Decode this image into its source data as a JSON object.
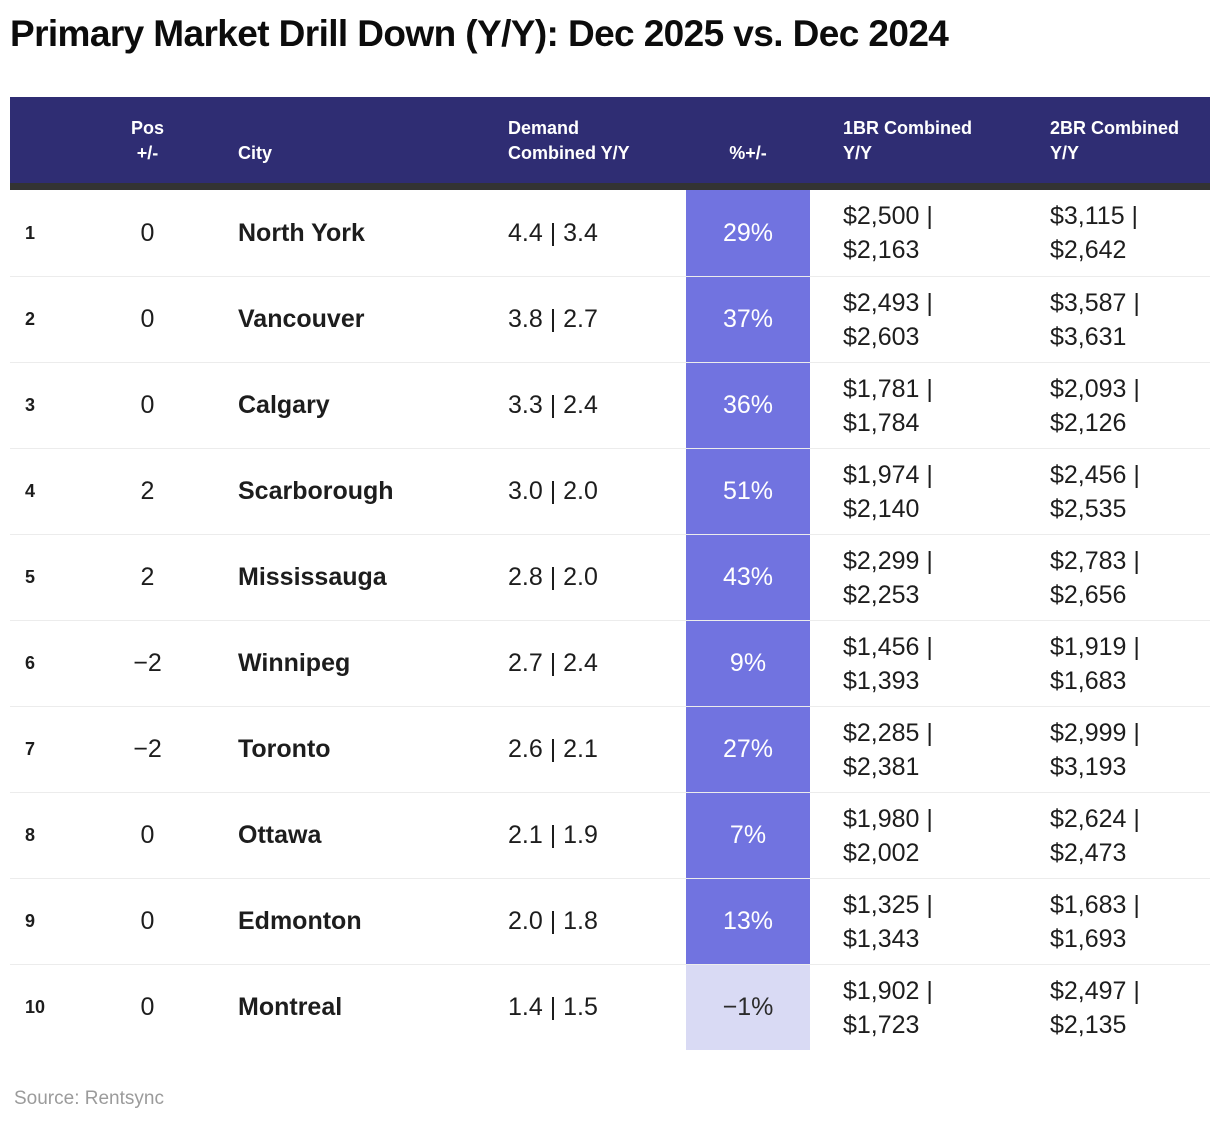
{
  "colors": {
    "header_bg": "#2f2d73",
    "header_divider": "#333333",
    "pct_highlight_bg": "#7173e0",
    "pct_highlight_negative_bg": "#d9daf4",
    "pct_text": "#ffffff",
    "pct_text_negative": "#2b2b2b"
  },
  "chart_data": {
    "type": "table",
    "title": "Primary Market Drill Down (Y/Y): Dec 2025 vs. Dec 2024",
    "source": "Source: Rentsync",
    "headers": {
      "rank": "",
      "pos": "Pos\n+/-",
      "city": "City",
      "demand": "Demand\nCombined Y/Y",
      "pct": "%+/-",
      "br1": "1BR Combined\nY/Y",
      "br2": "2BR Combined\nY/Y"
    },
    "rows": [
      {
        "rank": "1",
        "pos": "0",
        "city": "North York",
        "demand": "4.4 | 3.4",
        "pct": "29%",
        "br1": "$2,500 |\n$2,163",
        "br2": "$3,115 |\n$2,642"
      },
      {
        "rank": "2",
        "pos": "0",
        "city": "Vancouver",
        "demand": "3.8 | 2.7",
        "pct": "37%",
        "br1": "$2,493 |\n$2,603",
        "br2": "$3,587 |\n$3,631"
      },
      {
        "rank": "3",
        "pos": "0",
        "city": "Calgary",
        "demand": "3.3 | 2.4",
        "pct": "36%",
        "br1": "$1,781 |\n$1,784",
        "br2": "$2,093 |\n$2,126"
      },
      {
        "rank": "4",
        "pos": "2",
        "city": "Scarborough",
        "demand": "3.0 | 2.0",
        "pct": "51%",
        "br1": "$1,974 |\n$2,140",
        "br2": "$2,456 |\n$2,535"
      },
      {
        "rank": "5",
        "pos": "2",
        "city": "Mississauga",
        "demand": "2.8 | 2.0",
        "pct": "43%",
        "br1": "$2,299 |\n$2,253",
        "br2": "$2,783 |\n$2,656"
      },
      {
        "rank": "6",
        "pos": "−2",
        "city": "Winnipeg",
        "demand": "2.7 | 2.4",
        "pct": "9%",
        "br1": "$1,456 |\n$1,393",
        "br2": "$1,919 |\n$1,683"
      },
      {
        "rank": "7",
        "pos": "−2",
        "city": "Toronto",
        "demand": "2.6 | 2.1",
        "pct": "27%",
        "br1": "$2,285 |\n$2,381",
        "br2": "$2,999 |\n$3,193"
      },
      {
        "rank": "8",
        "pos": "0",
        "city": "Ottawa",
        "demand": "2.1 | 1.9",
        "pct": "7%",
        "br1": "$1,980 |\n$2,002",
        "br2": "$2,624 |\n$2,473"
      },
      {
        "rank": "9",
        "pos": "0",
        "city": "Edmonton",
        "demand": "2.0 | 1.8",
        "pct": "13%",
        "br1": "$1,325 |\n$1,343",
        "br2": "$1,683 |\n$1,693"
      },
      {
        "rank": "10",
        "pos": "0",
        "city": "Montreal",
        "demand": "1.4 | 1.5",
        "pct": "−1%",
        "br1": "$1,902 |\n$1,723",
        "br2": "$2,497 |\n$2,135"
      }
    ]
  }
}
